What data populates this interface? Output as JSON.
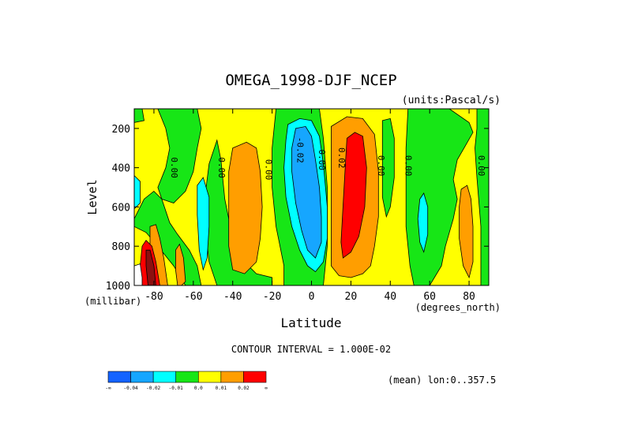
{
  "chart_data": {
    "type": "heatmap",
    "title": "OMEGA_1998-DJF_NCEP",
    "units_label": "(units:Pascal/s)",
    "xlabel": "Latitude",
    "ylabel": "Level",
    "x_unit": "(degrees_north)",
    "y_unit": "(millibar)",
    "x_ticks": [
      "-80",
      "-60",
      "-40",
      "-20",
      "0",
      "20",
      "40",
      "60",
      "80"
    ],
    "y_ticks": [
      "200",
      "400",
      "600",
      "800",
      "1000"
    ],
    "xlim": [
      -90,
      90
    ],
    "ylim": [
      1000,
      100
    ],
    "contour_interval_text": "CONTOUR INTERVAL = 1.000E-02",
    "mean_text": "(mean) lon:0..357.5",
    "contour_labels": [
      {
        "text": "0.00",
        "lat": -70,
        "lev": 400
      },
      {
        "text": "0.00",
        "lat": -46,
        "lev": 400
      },
      {
        "text": "0.00",
        "lat": -22,
        "lev": 410
      },
      {
        "text": "-0.02",
        "lat": -6,
        "lev": 310
      },
      {
        "text": "0.00",
        "lat": 5,
        "lev": 360
      },
      {
        "text": "0.02",
        "lat": 15,
        "lev": 350
      },
      {
        "text": "0.00",
        "lat": 35,
        "lev": 390
      },
      {
        "text": "0.00",
        "lat": 49,
        "lev": 390
      },
      {
        "text": "0.00",
        "lat": 86,
        "lev": 390
      }
    ],
    "colorbar": {
      "colors": [
        "#1463ff",
        "#16a6ff",
        "#00ffff",
        "#17e616",
        "#ffff00",
        "#ff9e00",
        "#ff0000"
      ],
      "labels": [
        "-∞",
        "-0.04",
        "-0.02",
        "-0.01",
        "0.0",
        "0.01",
        "0.02",
        "∞"
      ]
    },
    "fill_colors": {
      "background": "#ffff00",
      "green": "#17e616",
      "cyan": "#00ffff",
      "blue": "#16a6ff",
      "orange": "#ff9e00",
      "red": "#ff0000",
      "darkred": "#8c1010",
      "white": "#ffffff"
    }
  }
}
